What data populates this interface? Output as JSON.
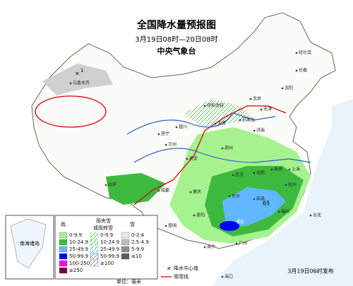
{
  "header": {
    "title": "全国降水量预报图",
    "period": "3月19日08时—20日08时",
    "issuer": "中央气象台"
  },
  "legend": {
    "rain": {
      "title": "雨",
      "items": [
        {
          "label": "0-9.9",
          "color": "#a6f28f"
        },
        {
          "label": "10-24.9",
          "color": "#3dba3d"
        },
        {
          "label": "25-49.9",
          "color": "#61b8ff"
        },
        {
          "label": "50-99.9",
          "color": "#0000fe"
        },
        {
          "label": "100-250",
          "color": "#fa00fa"
        },
        {
          "label": "≥250",
          "color": "#800040"
        }
      ]
    },
    "sleet": {
      "title": "雨夹雪",
      "title2": "或雨转雪",
      "items": [
        {
          "label": "0-9.9",
          "color": "#a6f28f"
        },
        {
          "label": "10-24.9",
          "color": "#3dba3d"
        },
        {
          "label": "25-49.9",
          "color": "#61b8ff"
        },
        {
          "label": "50-99.9",
          "color": "#0000fe"
        },
        {
          "label": "≥100",
          "color": "#fa00fa"
        }
      ]
    },
    "snow": {
      "title": "雪",
      "items": [
        {
          "label": "0-2.4",
          "color": "#e6e6e6"
        },
        {
          "label": "2.5-4.9",
          "color": "#bdbdbd"
        },
        {
          "label": "5-9.9",
          "color": "#8c8c8c"
        },
        {
          "label": "≥10",
          "color": "#5a5a5a"
        }
      ]
    },
    "center": "降水中心值",
    "line": "雨雪线",
    "unit": "单位：毫米"
  },
  "map": {
    "centers": [
      1,
      65,
      80
    ],
    "inset": "南海诸岛",
    "cities": [
      "乌鲁木齐",
      "哈尔滨",
      "长春",
      "沈阳",
      "北京",
      "天津",
      "石家庄",
      "太原",
      "呼和浩特",
      "银川",
      "西宁",
      "兰州",
      "西安",
      "郑州",
      "济南",
      "南京",
      "合肥",
      "上海",
      "杭州",
      "武汉",
      "长沙",
      "南昌",
      "福州",
      "台北",
      "广州",
      "南宁",
      "贵阳",
      "昆明",
      "成都",
      "重庆",
      "拉萨",
      "海口"
    ]
  },
  "footer": {
    "issued": "3月19日06时发布"
  }
}
